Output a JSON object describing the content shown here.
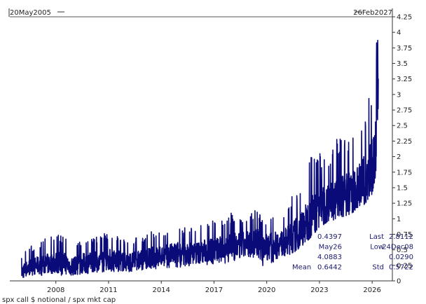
{
  "chart_data": {
    "type": "line",
    "title": "",
    "xlabel": "spx call $ notional / spx mkt cap",
    "ylabel": "",
    "x_range_labels": {
      "start": "20May2005",
      "end": "26Feb2027"
    },
    "xlim": [
      2005.38,
      2027.15
    ],
    "ylim": [
      0,
      4.25
    ],
    "x_ticks": [
      2008,
      2011,
      2014,
      2017,
      2020,
      2023,
      2026
    ],
    "x_tick_labels": [
      "2008",
      "2011",
      "2014",
      "2017",
      "2020",
      "2023",
      "2026"
    ],
    "y_ticks": [
      0,
      0.25,
      0.5,
      0.75,
      1,
      1.25,
      1.5,
      1.75,
      2,
      2.25,
      2.5,
      2.75,
      3,
      3.25,
      3.5,
      3.75,
      4,
      4.25
    ],
    "y_tick_labels": [
      "0",
      "0.25",
      "0.5",
      "0.75",
      "1",
      "1.25",
      "1.5",
      "1.75",
      "2",
      "2.25",
      "2.5",
      "2.75",
      "3",
      "3.25",
      "3.5",
      "3.75",
      "4",
      "4.25"
    ],
    "y_axis_side": "right",
    "grid": false,
    "legend": "none",
    "series_color": "#0a0a78",
    "series": [
      {
        "x": [
          2006.05,
          2006.5,
          2007,
          2007.5,
          2008,
          2008.5,
          2009,
          2009.5,
          2010,
          2010.5,
          2011,
          2011.5,
          2012,
          2012.5,
          2013,
          2013.5,
          2014,
          2014.5,
          2015,
          2015.5,
          2016,
          2016.5,
          2017,
          2017.5,
          2018,
          2018.5,
          2019,
          2019.5,
          2020,
          2020.5,
          2021,
          2021.5,
          2022,
          2022.5,
          2023,
          2023.5,
          2024,
          2024.5,
          2025,
          2025.5,
          2026,
          2026.2,
          2026.35
        ],
        "y": [
          0.15,
          0.22,
          0.25,
          0.27,
          0.3,
          0.28,
          0.24,
          0.28,
          0.3,
          0.33,
          0.35,
          0.33,
          0.3,
          0.32,
          0.35,
          0.38,
          0.4,
          0.42,
          0.45,
          0.44,
          0.45,
          0.48,
          0.5,
          0.52,
          0.55,
          0.56,
          0.6,
          0.62,
          0.55,
          0.6,
          0.62,
          0.7,
          0.85,
          1.0,
          1.2,
          1.25,
          1.3,
          1.35,
          1.45,
          1.6,
          1.8,
          2.1,
          2.81
        ],
        "low": [
          0.03,
          0.06,
          0.08,
          0.1,
          0.1,
          0.08,
          0.08,
          0.1,
          0.12,
          0.14,
          0.15,
          0.14,
          0.12,
          0.14,
          0.16,
          0.18,
          0.2,
          0.2,
          0.22,
          0.22,
          0.23,
          0.25,
          0.26,
          0.28,
          0.3,
          0.3,
          0.33,
          0.35,
          0.15,
          0.35,
          0.38,
          0.45,
          0.55,
          0.7,
          0.85,
          0.95,
          1.0,
          1.05,
          1.1,
          1.2,
          1.4,
          1.7,
          1.85
        ],
        "high": [
          0.45,
          0.55,
          0.6,
          0.7,
          0.75,
          0.72,
          0.6,
          0.68,
          0.7,
          0.75,
          0.78,
          0.74,
          0.66,
          0.7,
          0.74,
          0.8,
          0.78,
          0.85,
          0.9,
          0.86,
          0.88,
          0.95,
          0.98,
          1.0,
          1.1,
          1.05,
          1.12,
          1.15,
          0.95,
          1.05,
          1.15,
          1.4,
          1.65,
          2.0,
          2.1,
          2.0,
          2.3,
          2.4,
          2.3,
          2.65,
          3.3,
          3.7,
          4.09
        ]
      }
    ],
    "stats_box": {
      "rows": [
        [
          "",
          "0.4397",
          "Last",
          "2.8112"
        ],
        [
          "",
          "May26",
          "Low",
          "24Dec08"
        ],
        [
          "",
          "4.0883",
          "",
          "0.0290"
        ],
        [
          "Mean",
          "0.6442",
          "Std",
          "0.5722"
        ]
      ]
    }
  }
}
